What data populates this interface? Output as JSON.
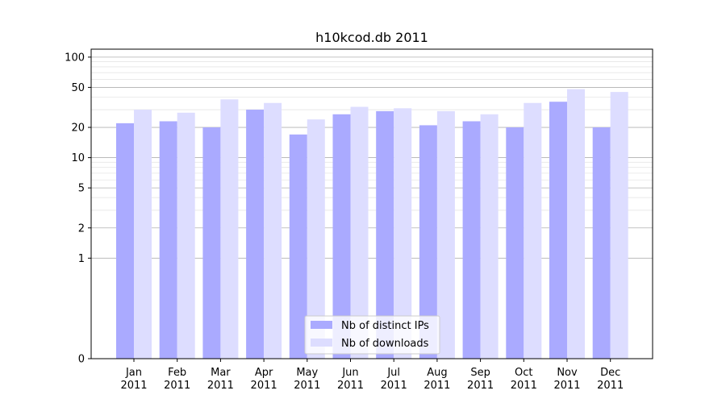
{
  "chart_data": {
    "type": "bar",
    "title": "h10kcod.db 2011",
    "xlabel": "",
    "ylabel": "",
    "y_scale": "symlog",
    "ylim": [
      0,
      120
    ],
    "y_ticks": [
      0,
      1,
      2,
      5,
      10,
      20,
      50,
      100
    ],
    "categories": [
      [
        "Jan",
        "2011"
      ],
      [
        "Feb",
        "2011"
      ],
      [
        "Mar",
        "2011"
      ],
      [
        "Apr",
        "2011"
      ],
      [
        "May",
        "2011"
      ],
      [
        "Jun",
        "2011"
      ],
      [
        "Jul",
        "2011"
      ],
      [
        "Aug",
        "2011"
      ],
      [
        "Sep",
        "2011"
      ],
      [
        "Oct",
        "2011"
      ],
      [
        "Nov",
        "2011"
      ],
      [
        "Dec",
        "2011"
      ]
    ],
    "series": [
      {
        "name": "Nb of distinct IPs",
        "color": "#aaaaff",
        "values": [
          22,
          23,
          20,
          30,
          17,
          27,
          29,
          21,
          23,
          20,
          36,
          20
        ]
      },
      {
        "name": "Nb of downloads",
        "color": "#ddddff",
        "values": [
          30,
          28,
          38,
          35,
          24,
          32,
          31,
          29,
          27,
          35,
          48,
          45
        ]
      }
    ],
    "legend": {
      "placement": "lower-center"
    },
    "grid": true
  }
}
